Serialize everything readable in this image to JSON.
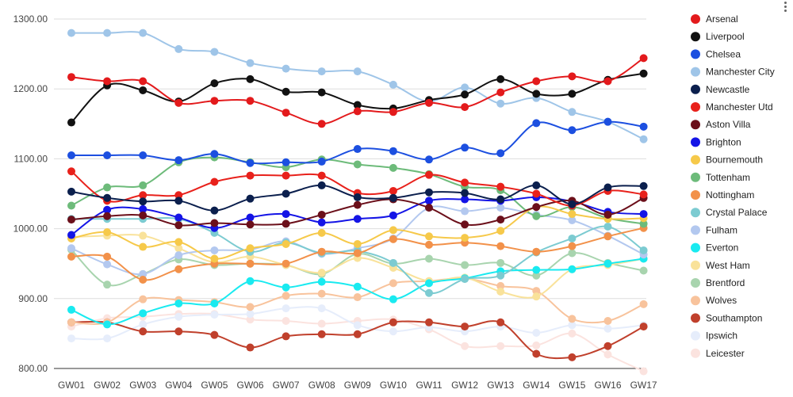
{
  "chart_data": {
    "type": "line",
    "title": "",
    "xlabel": "",
    "ylabel": "",
    "ylim": [
      800,
      1300
    ],
    "yticks": [
      800,
      900,
      1000,
      1100,
      1200,
      1300
    ],
    "ytick_labels": [
      "800.00",
      "900.00",
      "1000.00",
      "1100.00",
      "1200.00",
      "1300.00"
    ],
    "grid": true,
    "legend_position": "right",
    "categories": [
      "GW01",
      "GW02",
      "GW03",
      "GW04",
      "GW05",
      "GW06",
      "GW07",
      "GW08",
      "GW09",
      "GW10",
      "GW11",
      "GW12",
      "GW13",
      "GW14",
      "GW15",
      "GW16",
      "GW17"
    ],
    "series": [
      {
        "name": "Arsenal",
        "color": "#e31a1c",
        "values": [
          1217,
          1211,
          1211,
          1180,
          1183,
          1183,
          1166,
          1150,
          1168,
          1167,
          1180,
          1174,
          1195,
          1211,
          1218,
          1211,
          1244
        ]
      },
      {
        "name": "Liverpool",
        "color": "#111111",
        "values": [
          1152,
          1205,
          1198,
          1182,
          1208,
          1214,
          1196,
          1195,
          1177,
          1172,
          1184,
          1192,
          1214,
          1193,
          1193,
          1213,
          1222
        ]
      },
      {
        "name": "Chelsea",
        "color": "#1c4fe0",
        "values": [
          1105,
          1105,
          1105,
          1098,
          1107,
          1094,
          1095,
          1096,
          1114,
          1111,
          1099,
          1116,
          1108,
          1151,
          1141,
          1153,
          1146
        ]
      },
      {
        "name": "Manchester City",
        "color": "#9fc5e8",
        "values": [
          1280,
          1280,
          1280,
          1257,
          1253,
          1237,
          1229,
          1225,
          1225,
          1206,
          1182,
          1202,
          1179,
          1187,
          1167,
          1153,
          1128
        ]
      },
      {
        "name": "Newcastle",
        "color": "#0b1f4d",
        "values": [
          1053,
          1044,
          1039,
          1040,
          1026,
          1043,
          1050,
          1062,
          1045,
          1044,
          1052,
          1051,
          1042,
          1062,
          1035,
          1059,
          1061
        ]
      },
      {
        "name": "Manchester Utd",
        "color": "#e8211b",
        "values": [
          1082,
          1040,
          1048,
          1048,
          1067,
          1076,
          1076,
          1076,
          1051,
          1054,
          1077,
          1066,
          1060,
          1050,
          1033,
          1054,
          1049
        ]
      },
      {
        "name": "Aston Villa",
        "color": "#6b0f1a",
        "values": [
          1013,
          1018,
          1019,
          1005,
          1008,
          1006,
          1007,
          1020,
          1034,
          1042,
          1030,
          1006,
          1013,
          1031,
          1040,
          1020,
          1044
        ]
      },
      {
        "name": "Brighton",
        "color": "#1414e6",
        "values": [
          991,
          1027,
          1028,
          1016,
          1001,
          1016,
          1021,
          1009,
          1014,
          1019,
          1040,
          1042,
          1040,
          1045,
          1039,
          1024,
          1021
        ]
      },
      {
        "name": "Bournemouth",
        "color": "#f6c94a",
        "values": [
          986,
          995,
          974,
          981,
          957,
          972,
          978,
          994,
          978,
          998,
          989,
          987,
          997,
          1031,
          1021,
          1014,
          1015
        ]
      },
      {
        "name": "Tottenham",
        "color": "#6dbb7a",
        "values": [
          1033,
          1059,
          1062,
          1095,
          1102,
          1095,
          1088,
          1099,
          1092,
          1087,
          1078,
          1060,
          1055,
          1018,
          1031,
          1015,
          1007
        ]
      },
      {
        "name": "Nottingham",
        "color": "#f2914a",
        "values": [
          960,
          960,
          927,
          942,
          950,
          950,
          950,
          967,
          965,
          985,
          977,
          980,
          975,
          967,
          975,
          989,
          1001
        ]
      },
      {
        "name": "Crystal Palace",
        "color": "#7ccbd1",
        "values": [
          1014,
          1014,
          1014,
          1014,
          994,
          967,
          980,
          965,
          968,
          951,
          908,
          928,
          933,
          966,
          986,
          1003,
          969
        ]
      },
      {
        "name": "Fulham",
        "color": "#b3c8ef",
        "values": [
          972,
          949,
          935,
          962,
          969,
          970,
          982,
          964,
          972,
          986,
          1030,
          1025,
          1030,
          1020,
          1012,
          990,
          963
        ]
      },
      {
        "name": "Everton",
        "color": "#19eaf0",
        "values": [
          884,
          863,
          879,
          893,
          893,
          925,
          916,
          924,
          917,
          899,
          922,
          929,
          939,
          941,
          942,
          950,
          957
        ]
      },
      {
        "name": "West Ham",
        "color": "#f9e29a",
        "values": [
          988,
          990,
          990,
          972,
          952,
          960,
          948,
          937,
          958,
          944,
          925,
          930,
          910,
          903,
          942,
          948,
          957
        ]
      },
      {
        "name": "Brentford",
        "color": "#a8d4ae",
        "values": [
          970,
          920,
          935,
          956,
          948,
          950,
          948,
          935,
          964,
          950,
          957,
          948,
          951,
          933,
          965,
          951,
          940
        ]
      },
      {
        "name": "Wolves",
        "color": "#f8c39c",
        "values": [
          866,
          866,
          899,
          898,
          895,
          888,
          904,
          907,
          902,
          922,
          925,
          929,
          918,
          911,
          871,
          868,
          892
        ]
      },
      {
        "name": "Southampton",
        "color": "#c0402c",
        "values": [
          866,
          866,
          853,
          853,
          848,
          830,
          846,
          849,
          849,
          866,
          866,
          860,
          866,
          821,
          816,
          832,
          860
        ]
      },
      {
        "name": "Ipswich",
        "color": "#e6edfb",
        "values": [
          843,
          843,
          863,
          874,
          877,
          878,
          886,
          886,
          862,
          853,
          859,
          853,
          860,
          851,
          862,
          857,
          862
        ]
      },
      {
        "name": "Leicester",
        "color": "#fbe3df",
        "values": [
          860,
          872,
          874,
          878,
          878,
          870,
          868,
          864,
          868,
          870,
          856,
          832,
          832,
          833,
          850,
          820,
          796
        ]
      }
    ]
  }
}
